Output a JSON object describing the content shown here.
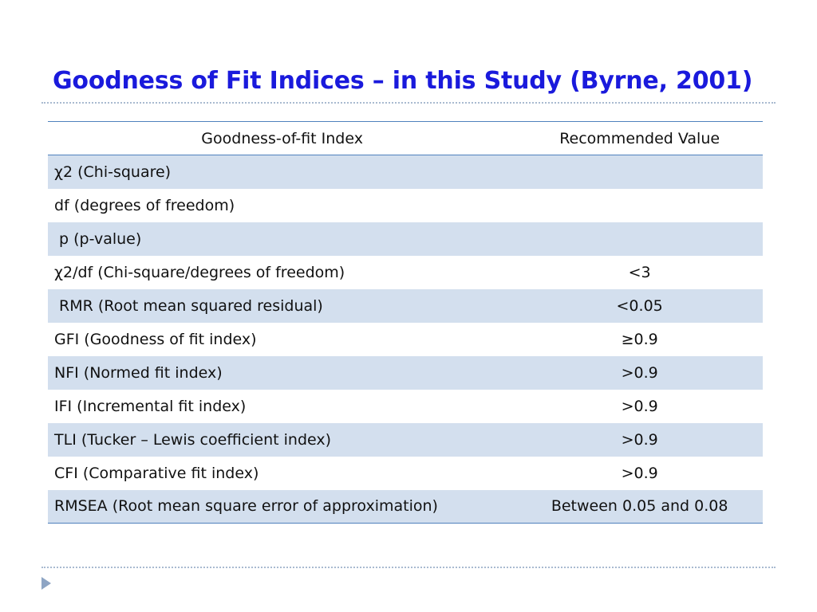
{
  "slide": {
    "title": "Goodness of Fit Indices – in this Study (Byrne, 2001)",
    "bullet_icon": "triangle-bullet-icon"
  },
  "table": {
    "headers": [
      "Goodness-of-fit Index",
      "Recommended Value"
    ],
    "rows": [
      {
        "index": "χ2 (Chi-square)",
        "value": ""
      },
      {
        "index": "df (degrees of freedom)",
        "value": ""
      },
      {
        "index": " p (p-value)",
        "value": ""
      },
      {
        "index": "χ2/df (Chi-square/degrees of freedom)",
        "value": "<3"
      },
      {
        "index": " RMR (Root mean squared residual)",
        "value": "<0.05"
      },
      {
        "index": "GFI (Goodness of fit index)",
        "value": "≥0.9"
      },
      {
        "index": "NFI (Normed fit index)",
        "value": ">0.9"
      },
      {
        "index": "IFI (Incremental fit index)",
        "value": ">0.9"
      },
      {
        "index": "TLI (Tucker – Lewis coefficient index)",
        "value": ">0.9"
      },
      {
        "index": "CFI (Comparative fit index)",
        "value": ">0.9"
      },
      {
        "index": "RMSEA (Root mean square error of approximation)",
        "value": "Between 0.05 and 0.08"
      }
    ]
  },
  "colors": {
    "title": "#1a1adc",
    "band": "#d3dfee",
    "rule": "#4f81bd"
  }
}
